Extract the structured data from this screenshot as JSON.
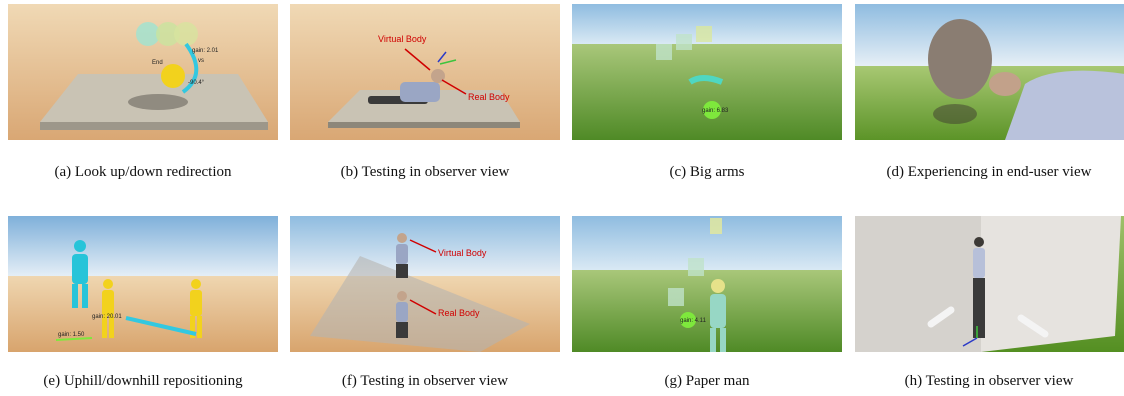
{
  "figure": {
    "captions": [
      "(a)  Look up/down redirection",
      "(b)  Testing in observer view",
      "(c)  Big arms",
      "(d)  Experiencing in end-user view",
      "(e)  Uphill/downhill repositioning",
      "(f)  Testing in observer view",
      "(g)  Paper man",
      "(h)  Testing in observer view"
    ],
    "panel_a": {
      "gain": "gain: 2.01",
      "vs": "vs",
      "end": "End",
      "angle": "-90.4°"
    },
    "panel_b": {
      "virtual_body": "Virtual Body",
      "real_body": "Real Body"
    },
    "panel_c": {
      "gain": "gain: 6.83"
    },
    "panel_e": {
      "gain_a": "gain: 20.01",
      "gain_b": "gain: 1.50"
    },
    "panel_f": {
      "virtual_body": "Virtual Body",
      "real_body": "Real Body"
    },
    "panel_g": {
      "gain": "gain: 4.11"
    },
    "colors": {
      "annotation_red": "#d00000",
      "sky": "#a9cbe6",
      "sand": "#e0b98a",
      "grass": "#6fa23c"
    }
  }
}
